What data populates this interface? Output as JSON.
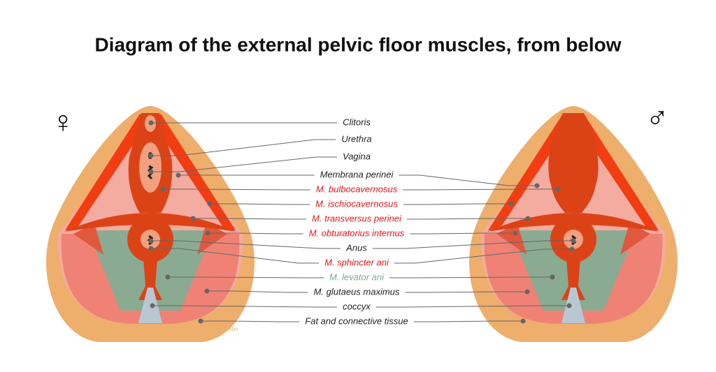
{
  "title": "Diagram of the external pelvic floor muscles, from below",
  "symbols": {
    "female": "♀",
    "male": "♂"
  },
  "watermark": "hastebo",
  "labels": [
    {
      "text": "Clitoris",
      "color": "#222222"
    },
    {
      "text": "Urethra",
      "color": "#222222"
    },
    {
      "text": "Vagina",
      "color": "#222222"
    },
    {
      "text": "Membrana perinei",
      "color": "#222222"
    },
    {
      "text": "M. bulbocavernosus",
      "color": "#e3161b"
    },
    {
      "text": "M. ischiocavernosus",
      "color": "#e3161b"
    },
    {
      "text": "M. transversus perinei",
      "color": "#e3161b"
    },
    {
      "text": "M. obturatorius internus",
      "color": "#e3161b"
    },
    {
      "text": "Anus",
      "color": "#222222"
    },
    {
      "text": "M. sphincter ani",
      "color": "#e3161b"
    },
    {
      "text": "M. levator ani",
      "color": "#7fa889"
    },
    {
      "text": "M. glutaeus maximus",
      "color": "#222222"
    },
    {
      "text": "coccyx",
      "color": "#222222"
    },
    {
      "text": "Fat and connective tissue",
      "color": "#222222"
    }
  ]
}
